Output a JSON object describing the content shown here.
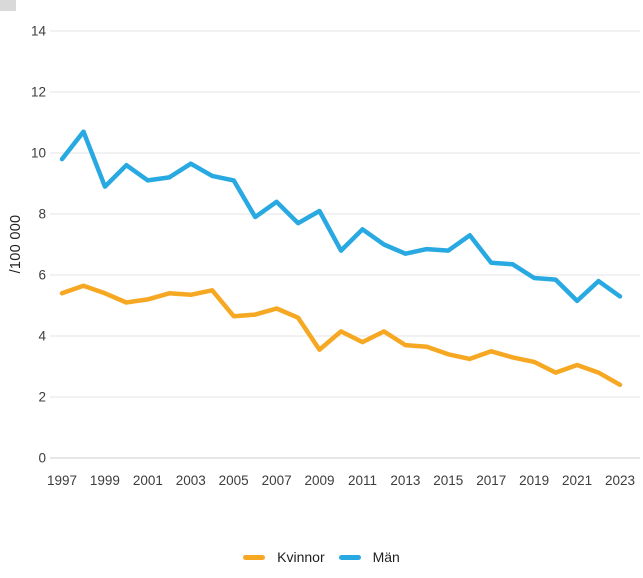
{
  "chart_data": {
    "type": "line",
    "title": "",
    "ylabel": "/100 000",
    "ylim": [
      0,
      14
    ],
    "ytick_step": 2,
    "grid": "horizontal",
    "legend_position": "bottom",
    "x": [
      1997,
      1998,
      1999,
      2000,
      2001,
      2002,
      2003,
      2004,
      2005,
      2006,
      2007,
      2008,
      2009,
      2010,
      2011,
      2012,
      2013,
      2014,
      2015,
      2016,
      2017,
      2018,
      2019,
      2020,
      2021,
      2022,
      2023
    ],
    "xtick_labels": [
      "1997",
      "1999",
      "2001",
      "2003",
      "2005",
      "2007",
      "2009",
      "2011",
      "2013",
      "2015",
      "2017",
      "2019",
      "2021",
      "2023"
    ],
    "series": [
      {
        "name": "Kvinnor",
        "color": "#F7A823",
        "values": [
          5.4,
          5.65,
          5.4,
          5.1,
          5.2,
          5.4,
          5.35,
          5.5,
          4.65,
          4.7,
          4.9,
          4.6,
          3.55,
          4.15,
          3.8,
          4.15,
          3.7,
          3.65,
          3.4,
          3.25,
          3.5,
          3.3,
          3.15,
          2.8,
          3.05,
          2.8,
          2.4
        ]
      },
      {
        "name": "Män",
        "color": "#29A9E1",
        "values": [
          9.8,
          10.7,
          8.9,
          9.6,
          9.1,
          9.2,
          9.65,
          9.25,
          9.1,
          7.9,
          8.4,
          7.7,
          8.1,
          6.8,
          7.5,
          7.0,
          6.7,
          6.85,
          6.8,
          7.3,
          6.4,
          6.35,
          5.9,
          5.85,
          5.15,
          5.8,
          5.3
        ]
      }
    ],
    "colors": {
      "gridline": "#e4e4e4",
      "zero_line": "#cfcfcf",
      "tick_label": "#3d3d3d"
    }
  }
}
